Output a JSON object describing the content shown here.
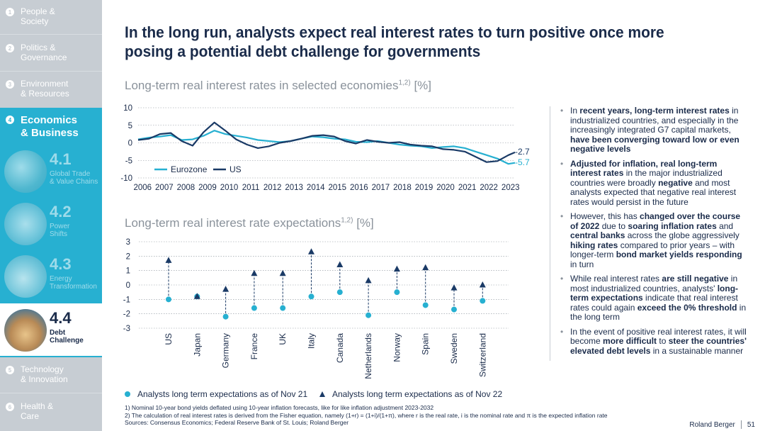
{
  "sidebar": {
    "items": [
      {
        "num": "1",
        "label": "People &\nSociety"
      },
      {
        "num": "2",
        "label": "Politics &\nGovernance"
      },
      {
        "num": "3",
        "label": "Environment\n& Resources"
      },
      {
        "num": "4",
        "label": "Economics\n& Business"
      },
      {
        "num": "5",
        "label": "Technology\n& Innovation"
      },
      {
        "num": "6",
        "label": "Health &\nCare"
      }
    ],
    "subitems": [
      {
        "num": "4.1",
        "label": "Global Trade\n& Value Chains"
      },
      {
        "num": "4.2",
        "label": "Power\nShifts"
      },
      {
        "num": "4.3",
        "label": "Energy\nTransformation"
      },
      {
        "num": "4.4",
        "label": "Debt\nChallenge"
      }
    ]
  },
  "title": "In the long run, analysts expect real interest rates to turn positive once more posing a potential debt challenge for governments",
  "chart1_title": "Long-term real interest rates in selected economies",
  "chart1_sup": "1,2)",
  "chart1_unit": "[%]",
  "chart2_title": "Long-term real interest rate expectations",
  "chart2_sup": "1,2)",
  "chart2_unit": "[%]",
  "chart_data": [
    {
      "type": "line",
      "title": "Long-term real interest rates in selected economies",
      "ylabel": "%",
      "ylim": [
        -10,
        10
      ],
      "yticks": [
        "10",
        "5",
        "0",
        "-5",
        "-10"
      ],
      "x_ticks": [
        "2006",
        "2007",
        "2008",
        "2009",
        "2010",
        "2011",
        "2012",
        "2013",
        "2014",
        "2015",
        "2016",
        "2017",
        "2018",
        "2019",
        "2020",
        "2021",
        "2022",
        "2023"
      ],
      "x": [
        2006.0,
        2006.5,
        2007.0,
        2007.5,
        2008.0,
        2008.5,
        2009.0,
        2009.5,
        2010.0,
        2010.5,
        2011.0,
        2011.5,
        2012.0,
        2012.5,
        2013.0,
        2013.5,
        2014.0,
        2014.5,
        2015.0,
        2015.5,
        2016.0,
        2016.5,
        2017.0,
        2017.5,
        2018.0,
        2018.5,
        2019.0,
        2019.5,
        2020.0,
        2020.5,
        2021.0,
        2021.5,
        2022.0,
        2022.5,
        2023.0,
        2023.3
      ],
      "series": [
        {
          "name": "Eurozone",
          "color": "#27b0d1",
          "values": [
            1.0,
            1.5,
            1.8,
            2.2,
            0.8,
            1.0,
            2.0,
            3.5,
            2.5,
            2.0,
            1.5,
            0.8,
            0.5,
            0.2,
            0.5,
            1.2,
            1.8,
            1.6,
            1.2,
            1.0,
            0.3,
            0.2,
            0.5,
            0.0,
            -0.5,
            -0.8,
            -1.0,
            -1.5,
            -1.2,
            -1.0,
            -1.5,
            -2.5,
            -3.5,
            -4.5,
            -6.0,
            -5.7
          ]
        },
        {
          "name": "US",
          "color": "#1a3a66",
          "values": [
            0.8,
            1.2,
            2.5,
            2.8,
            0.5,
            -0.8,
            3.0,
            5.8,
            3.5,
            1.0,
            -0.5,
            -1.5,
            -1.0,
            0.0,
            0.5,
            1.2,
            2.0,
            2.2,
            1.8,
            0.5,
            -0.2,
            0.8,
            0.3,
            0.0,
            0.2,
            -0.5,
            -0.8,
            -1.0,
            -1.8,
            -2.0,
            -2.5,
            -4.0,
            -5.5,
            -5.2,
            -3.5,
            -2.7
          ]
        }
      ],
      "end_labels": [
        "-2.7",
        "-5.7"
      ]
    },
    {
      "type": "scatter",
      "title": "Long-term real interest rate expectations",
      "ylabel": "%",
      "ylim": [
        -3,
        3
      ],
      "yticks": [
        "3",
        "2",
        "1",
        "0",
        "-1",
        "-2",
        "-3"
      ],
      "categories": [
        "US",
        "Japan",
        "Germany",
        "France",
        "UK",
        "Italy",
        "Canada",
        "Netherlands",
        "Norway",
        "Spain",
        "Sweden",
        "Switzerland"
      ],
      "series": [
        {
          "name": "Analysts long term expectations as of Nov 21",
          "color": "#27b0d1",
          "marker": "circle",
          "values": [
            -1.0,
            -0.8,
            -2.2,
            -1.6,
            -1.6,
            -0.8,
            -0.5,
            -2.1,
            -0.5,
            -1.4,
            -1.7,
            -1.1
          ]
        },
        {
          "name": "Analysts long term expectations as of Nov 22",
          "color": "#1a3a66",
          "marker": "triangle",
          "values": [
            1.7,
            -0.8,
            -0.3,
            0.8,
            0.8,
            2.3,
            1.4,
            0.3,
            1.1,
            1.2,
            -0.2,
            0.0
          ]
        }
      ]
    }
  ],
  "bullets": [
    [
      {
        "t": "In "
      },
      {
        "t": "recent years, long-term interest rates",
        "b": true
      },
      {
        "t": " in industrialized countries, and especially in the increasingly integrated G7 capital markets, "
      },
      {
        "t": "have been converging toward low or even negative levels",
        "b": true
      }
    ],
    [
      {
        "t": "Adjusted for inflation, real long-term interest rates",
        "b": true
      },
      {
        "t": " in the major industrialized countries were broadly "
      },
      {
        "t": "negative",
        "b": true
      },
      {
        "t": " and most analysts expected that negative real interest rates would persist in the future"
      }
    ],
    [
      {
        "t": "However, this has "
      },
      {
        "t": "changed over the course of 2022",
        "b": true
      },
      {
        "t": " due to "
      },
      {
        "t": "soaring inflation rates",
        "b": true
      },
      {
        "t": " and "
      },
      {
        "t": "central banks",
        "b": true
      },
      {
        "t": " across the globe aggressively "
      },
      {
        "t": "hiking rates",
        "b": true
      },
      {
        "t": " compared to prior years – with longer-term "
      },
      {
        "t": "bond market yields responding",
        "b": true
      },
      {
        "t": " in turn"
      }
    ],
    [
      {
        "t": "While real interest rates "
      },
      {
        "t": "are still negative",
        "b": true
      },
      {
        "t": " in most industrialized countries, analysts' "
      },
      {
        "t": "long-term expectations",
        "b": true
      },
      {
        "t": " indicate that real interest rates could again "
      },
      {
        "t": "exceed the 0% threshold",
        "b": true
      },
      {
        "t": " in the long term"
      }
    ],
    [
      {
        "t": "In the event of positive real interest rates, it will become "
      },
      {
        "t": "more difficult",
        "b": true
      },
      {
        "t": " to "
      },
      {
        "t": "steer the countries' elevated debt levels",
        "b": true
      },
      {
        "t": " in a sustainable manner"
      }
    ]
  ],
  "footnotes": [
    "1) Nominal 10-year bond yields deflated using 10-year inflation forecasts, like for like inflation adjustment 2023-2032",
    "2) The calculation of real interest rates is derived from the Fisher equation, namely (1+r) = (1+i)/(1+π), where r is the real rate, i is the nominal rate and π is the expected inflation rate",
    "Sources: Consensus Economics; Federal Reserve Bank of St. Louis; Roland Berger"
  ],
  "brand": {
    "name": "Roland Berger",
    "page": "51"
  },
  "colors": {
    "accent": "#27b0d1",
    "navy": "#1a3a66",
    "sidebar": "#c7cdd3",
    "text": "#1a2b4a"
  }
}
